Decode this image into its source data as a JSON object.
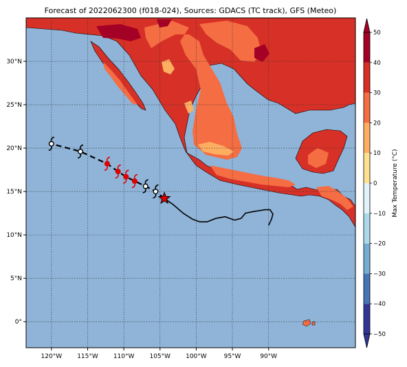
{
  "title": "Forecast of 2022062300 (f018-024), Sources: GDACS (TC track), GFS (Meteo)",
  "map": {
    "lon_range": [
      -123.5,
      -78.0
    ],
    "lat_range": [
      -3.0,
      35.0
    ],
    "lon_ticks": [
      -120,
      -115,
      -110,
      -105,
      -100,
      -95,
      -90
    ],
    "lon_tick_labels": [
      "120°W",
      "115°W",
      "110°W",
      "105°W",
      "100°W",
      "95°W",
      "90°W"
    ],
    "lat_ticks": [
      0,
      5,
      10,
      15,
      20,
      25,
      30
    ],
    "lat_tick_labels": [
      "0°",
      "5°N",
      "10°N",
      "15°N",
      "20°N",
      "25°N",
      "30°N"
    ],
    "grid": true,
    "ocean_color": "#8fb4d8"
  },
  "track": {
    "current_position": {
      "lon": -104.4,
      "lat": 14.2
    },
    "forecast_points": [
      {
        "lon": -120.0,
        "lat": 20.5,
        "intensity": "storm"
      },
      {
        "lon": -116.0,
        "lat": 19.6,
        "intensity": "storm"
      },
      {
        "lon": -112.3,
        "lat": 18.2,
        "intensity": "hurricane"
      },
      {
        "lon": -110.8,
        "lat": 17.3,
        "intensity": "hurricane"
      },
      {
        "lon": -109.7,
        "lat": 16.7,
        "intensity": "hurricane"
      },
      {
        "lon": -108.5,
        "lat": 16.2,
        "intensity": "hurricane"
      },
      {
        "lon": -107.0,
        "lat": 15.6,
        "intensity": "storm"
      },
      {
        "lon": -105.6,
        "lat": 15.0,
        "intensity": "storm"
      }
    ],
    "past_track": [
      [
        -104.4,
        14.2
      ],
      [
        -103.2,
        13.5
      ],
      [
        -101.8,
        12.5
      ],
      [
        -100.5,
        11.8
      ],
      [
        -99.5,
        11.5
      ],
      [
        -98.5,
        11.5
      ],
      [
        -97.3,
        11.9
      ],
      [
        -96.0,
        12.1
      ],
      [
        -94.7,
        11.7
      ],
      [
        -93.8,
        11.9
      ],
      [
        -93.2,
        12.5
      ],
      [
        -92.0,
        12.7
      ],
      [
        -90.5,
        12.9
      ],
      [
        -89.8,
        12.9
      ],
      [
        -89.4,
        12.4
      ],
      [
        -89.6,
        11.8
      ],
      [
        -90.0,
        11.1
      ]
    ]
  },
  "colorbar": {
    "label": "Max Temperature (°C)",
    "ticks": [
      -50,
      -40,
      -30,
      -20,
      -10,
      0,
      10,
      20,
      30,
      40,
      50
    ],
    "colors": [
      "#313695",
      "#4575b4",
      "#74add1",
      "#abd9e9",
      "#e0f3f8",
      "#ffffbf",
      "#fee090",
      "#fdae61",
      "#f46d43",
      "#d73027",
      "#a50026"
    ]
  }
}
